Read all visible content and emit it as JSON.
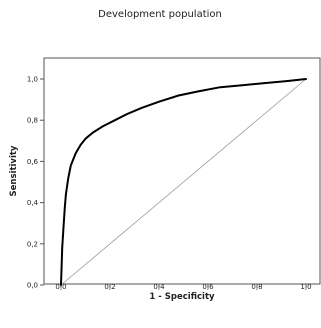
{
  "chart_data": {
    "type": "line",
    "title": "Development population",
    "xlabel": "1 - Specificity",
    "ylabel": "Sensitivity",
    "xlim": [
      0,
      1
    ],
    "ylim": [
      0,
      1
    ],
    "x_ticks": [
      "0,0",
      "0,2",
      "0,4",
      "0,6",
      "0,8",
      "1,0"
    ],
    "y_ticks": [
      "0,0",
      "0,2",
      "0,4",
      "0,6",
      "0,8",
      "1,0"
    ],
    "grid": false,
    "legend": "none",
    "series": [
      {
        "role": "roc_curve",
        "color": "#000000",
        "x": [
          0.0,
          0.005,
          0.01,
          0.015,
          0.02,
          0.03,
          0.04,
          0.06,
          0.08,
          0.1,
          0.13,
          0.17,
          0.22,
          0.27,
          0.33,
          0.4,
          0.48,
          0.56,
          0.65,
          0.74,
          0.83,
          0.92,
          1.0
        ],
        "y": [
          0.0,
          0.18,
          0.28,
          0.37,
          0.44,
          0.52,
          0.58,
          0.64,
          0.68,
          0.71,
          0.74,
          0.77,
          0.8,
          0.83,
          0.86,
          0.89,
          0.92,
          0.94,
          0.96,
          0.97,
          0.98,
          0.99,
          1.0
        ]
      },
      {
        "role": "reference_line",
        "color": "#9a9a9a",
        "x": [
          0.0,
          1.0
        ],
        "y": [
          0.0,
          1.0
        ]
      }
    ]
  }
}
